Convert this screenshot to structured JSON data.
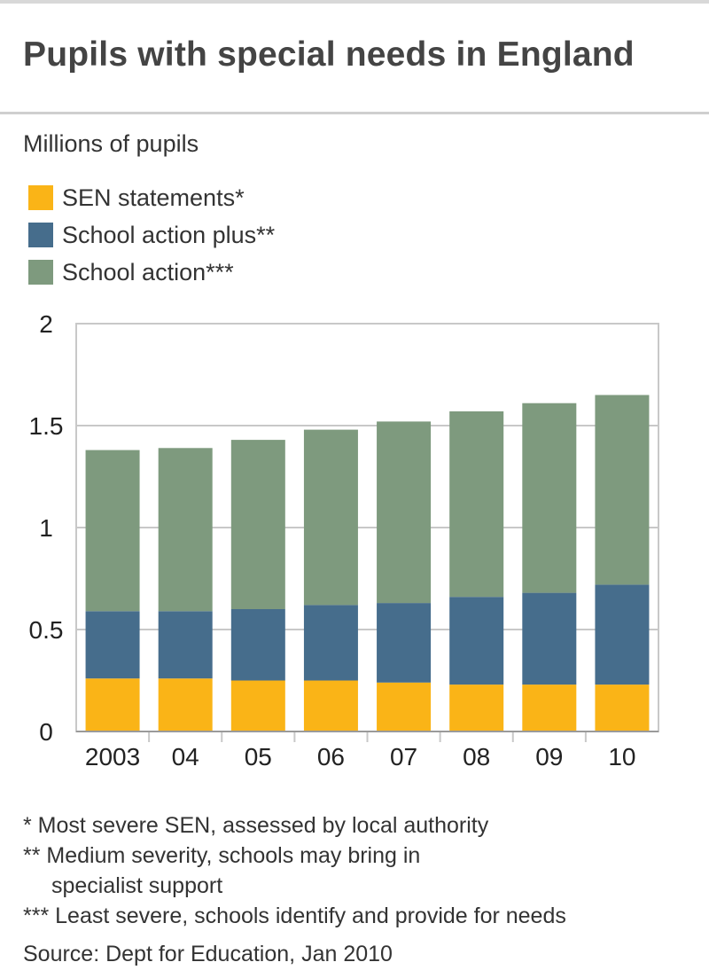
{
  "header": {
    "title": "Pupils with special needs in England",
    "units": "Millions of pupils"
  },
  "chart_data": {
    "type": "bar",
    "stacked": true,
    "title": "Pupils with special needs in England",
    "ylabel": "Millions of pupils",
    "xlabel": "",
    "ylim": [
      0,
      2
    ],
    "yticks": [
      0,
      0.5,
      1,
      1.5,
      2
    ],
    "ytick_labels": [
      "0",
      "0.5",
      "1",
      "1.5",
      "2"
    ],
    "categories": [
      "2003",
      "04",
      "05",
      "06",
      "07",
      "08",
      "09",
      "10"
    ],
    "grid": true,
    "legend_position": "top-left",
    "series": [
      {
        "name": "SEN statements*",
        "color": "#fab417",
        "values": [
          0.26,
          0.26,
          0.25,
          0.25,
          0.24,
          0.23,
          0.23,
          0.23
        ]
      },
      {
        "name": "School action plus**",
        "color": "#466d8c",
        "values": [
          0.33,
          0.33,
          0.35,
          0.37,
          0.39,
          0.43,
          0.45,
          0.49
        ]
      },
      {
        "name": "School action***",
        "color": "#7e9a7e",
        "values": [
          0.79,
          0.8,
          0.83,
          0.86,
          0.89,
          0.91,
          0.93,
          0.93
        ]
      }
    ]
  },
  "footnotes": [
    "* Most severe SEN, assessed by local authority",
    "** Medium severity, schools may bring in\nspecialist support",
    "*** Least severe, schools identify and provide for needs"
  ],
  "source": "Source: Dept for Education, Jan 2010"
}
